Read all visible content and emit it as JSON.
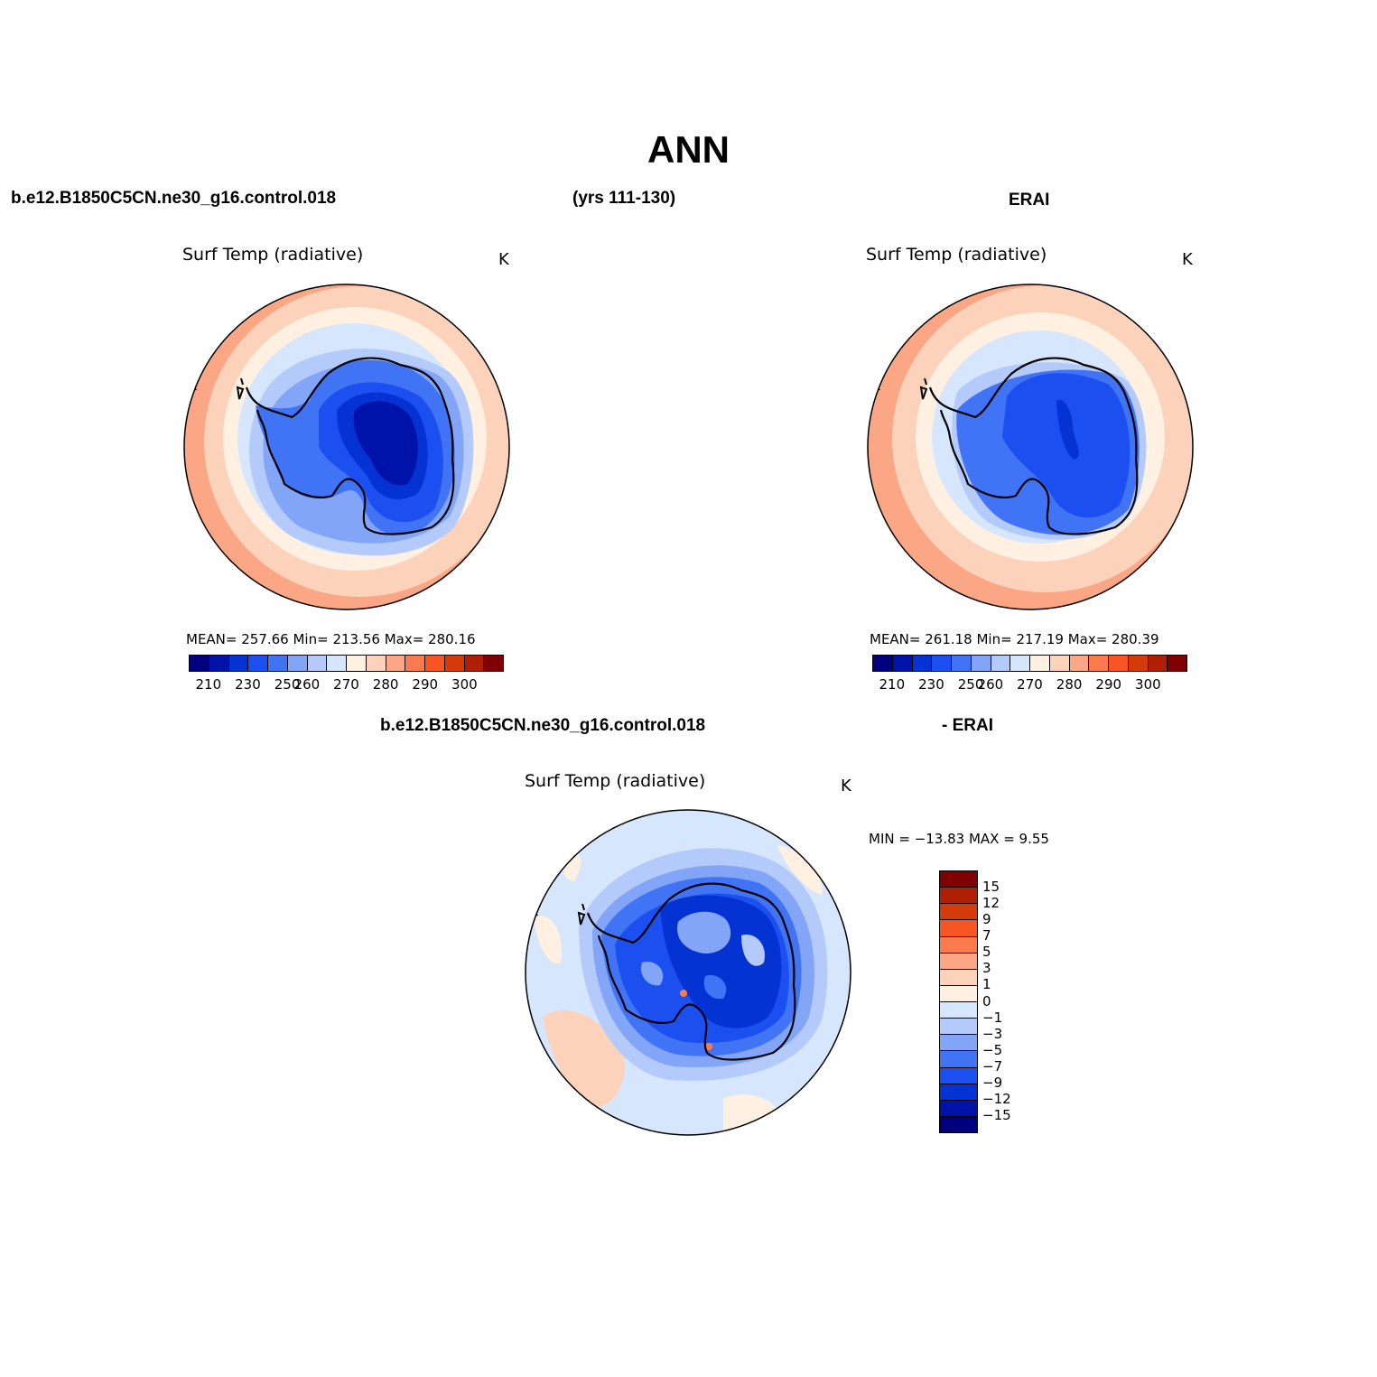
{
  "title": "ANN",
  "header": {
    "case": "b.e12.B1850C5CN.ne30_g16.control.018",
    "years": "(yrs 111-130)",
    "obs": "ERAI",
    "diff_case": "b.e12.B1850C5CN.ne30_g16.control.018",
    "diff_obs": "- ERAI"
  },
  "panels": {
    "model": {
      "title": "Surf Temp (radiative)",
      "units": "K",
      "stats": "MEAN= 257.66   Min= 213.56   Max= 280.16"
    },
    "obs": {
      "title": "Surf Temp (radiative)",
      "units": "K",
      "stats": "MEAN= 261.18   Min= 217.19   Max= 280.39"
    },
    "diff": {
      "title": "Surf Temp (radiative)",
      "units": "K",
      "stats": "MIN = −13.83 MAX =    9.55"
    }
  },
  "colorbar_abs": {
    "colors": [
      "#00007f",
      "#0013a8",
      "#0532d2",
      "#1b4ff0",
      "#4173f5",
      "#82a5f8",
      "#b4cafb",
      "#d6e7fd",
      "#fff0e1",
      "#fdd2bb",
      "#fba684",
      "#fb7a4e",
      "#f75522",
      "#d53a0a",
      "#b01f04",
      "#7e0000"
    ],
    "labels": [
      "210",
      "230",
      "250",
      "260",
      "270",
      "280",
      "290",
      "300"
    ]
  },
  "colorbar_diff": {
    "colors": [
      "#7e0000",
      "#b01f04",
      "#d53a0a",
      "#f75522",
      "#fb7a4e",
      "#fba684",
      "#fdd2bb",
      "#fff0e1",
      "#d6e7fd",
      "#b4cafb",
      "#82a5f8",
      "#4173f5",
      "#1b4ff0",
      "#0532d2",
      "#0013a8",
      "#00007f"
    ],
    "labels": [
      "15",
      "12",
      "9",
      "7",
      "5",
      "3",
      "1",
      "0",
      "−1",
      "−3",
      "−5",
      "−7",
      "−9",
      "−12",
      "−15"
    ]
  }
}
